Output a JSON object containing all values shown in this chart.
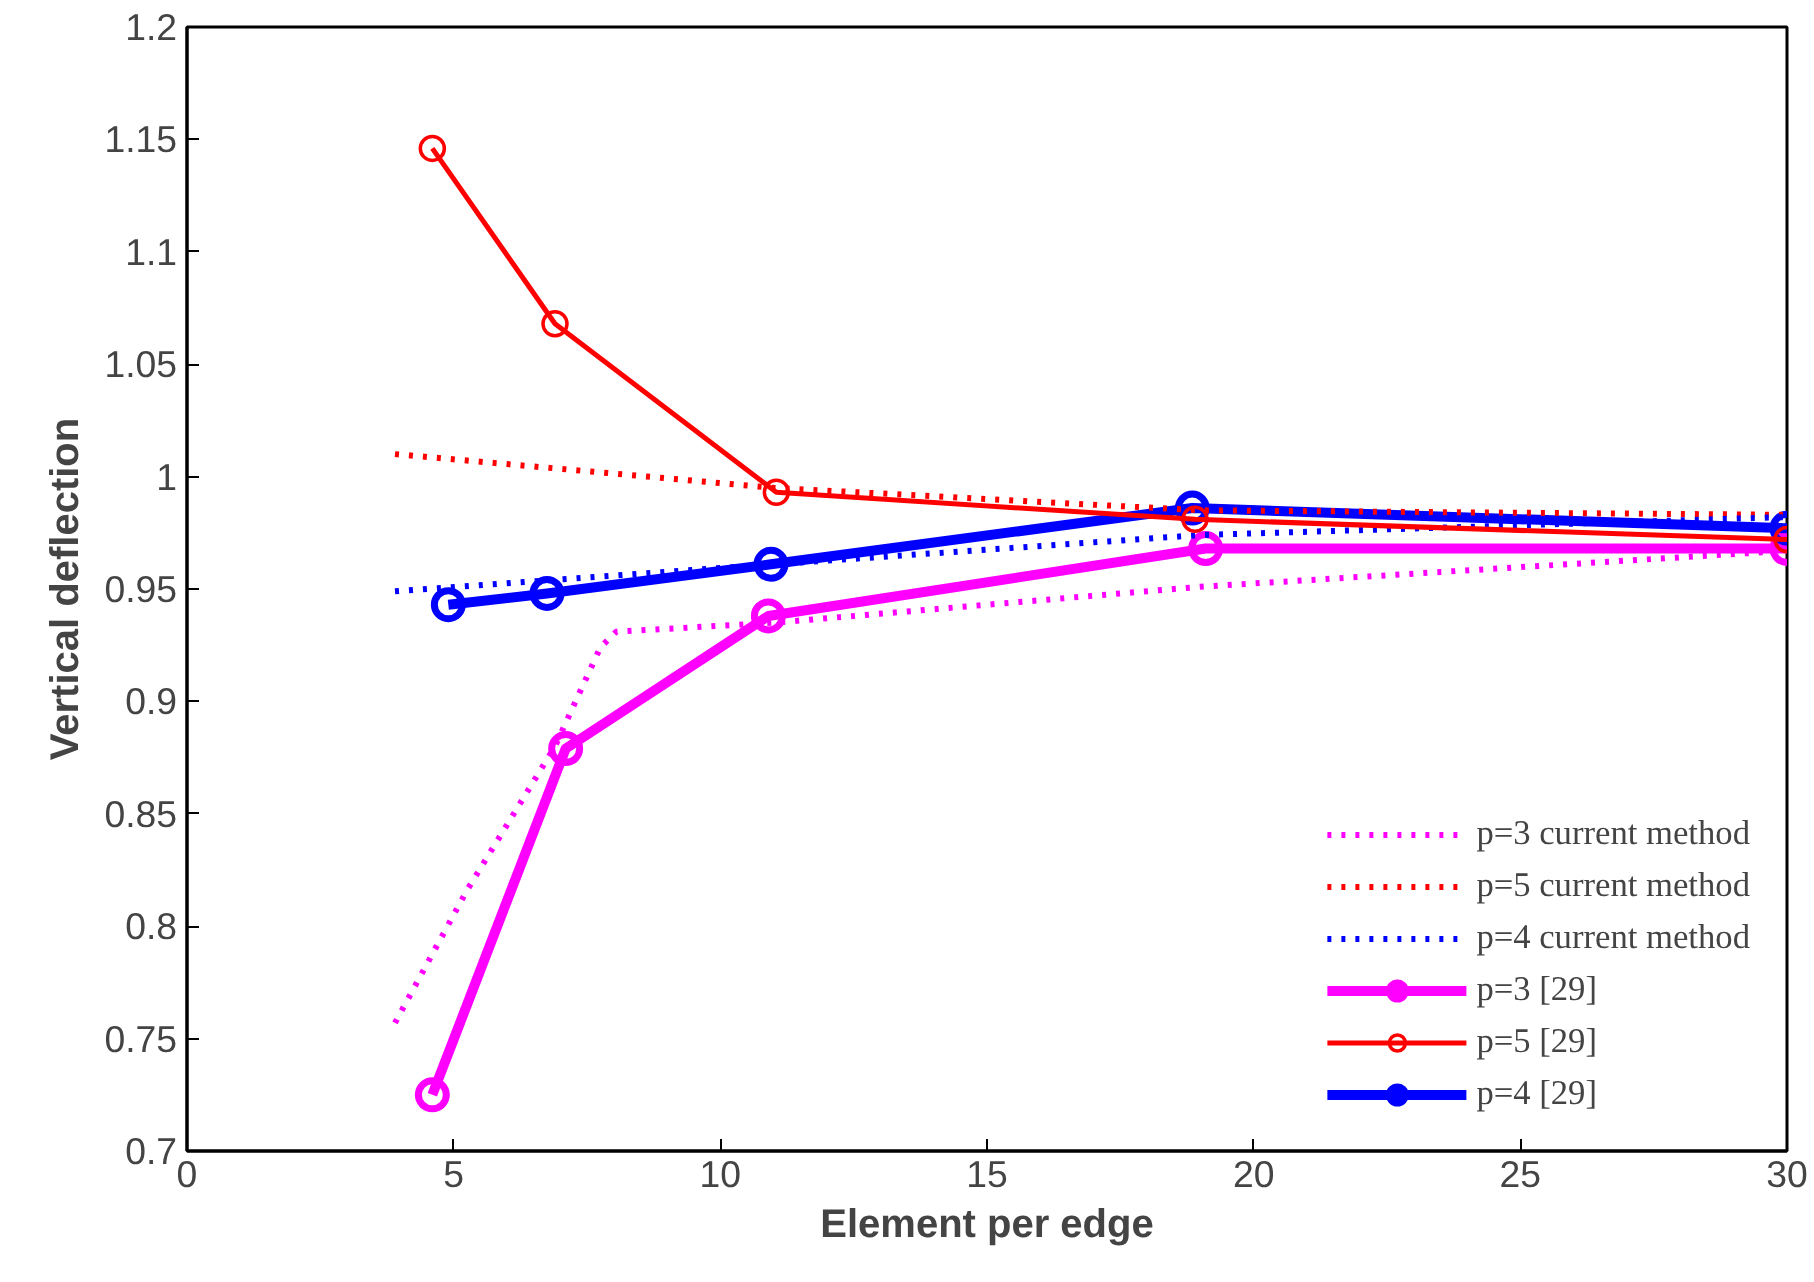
{
  "chart_data": {
    "type": "line",
    "xlabel": "Element per edge",
    "ylabel": "Vertical deflection",
    "xlim": [
      0,
      30
    ],
    "ylim": [
      0.7,
      1.2
    ],
    "xticks": [
      0,
      5,
      10,
      15,
      20,
      25,
      30
    ],
    "yticks": [
      0.7,
      0.75,
      0.8,
      0.85,
      0.9,
      0.95,
      1,
      1.05,
      1.1,
      1.15,
      1.2
    ],
    "grid": false,
    "legend": "bottom right",
    "series": [
      {
        "name": "p=3 current method",
        "color": "#ff00ff",
        "line_style": "dotted",
        "marker": "none",
        "x": [
          3.9,
          5.25,
          6.9,
          7.75,
          8.05,
          11,
          19,
          30
        ],
        "values": [
          0.757,
          0.816,
          0.88,
          0.924,
          0.931,
          0.935,
          0.951,
          0.967
        ]
      },
      {
        "name": "p=5 current method",
        "color": "#ff0000",
        "line_style": "dotted",
        "marker": "none",
        "x": [
          3.9,
          11,
          19,
          30
        ],
        "values": [
          1.01,
          0.995,
          0.985,
          0.983
        ]
      },
      {
        "name": "p=4 current method",
        "color": "#0000ff",
        "line_style": "dotted",
        "marker": "none",
        "x": [
          3.9,
          11,
          19,
          30
        ],
        "values": [
          0.949,
          0.961,
          0.974,
          0.982
        ]
      },
      {
        "name": "p=3 [29]",
        "color": "#ff00ff",
        "line_style": "solid",
        "marker": "circle",
        "x": [
          4.6,
          7.1,
          10.9,
          19.1,
          30
        ],
        "values": [
          0.725,
          0.879,
          0.938,
          0.968,
          0.968
        ]
      },
      {
        "name": "p=5 [29]",
        "color": "#ff0000",
        "line_style": "solid",
        "marker": "circle",
        "x": [
          4.6,
          6.9,
          11.05,
          18.9,
          30
        ],
        "values": [
          1.146,
          1.068,
          0.993,
          0.981,
          0.972
        ]
      },
      {
        "name": "p=4 [29]",
        "color": "#0000ff",
        "line_style": "solid",
        "marker": "circle",
        "x": [
          4.9,
          6.75,
          10.95,
          18.85,
          30
        ],
        "values": [
          0.943,
          0.948,
          0.961,
          0.986,
          0.977
        ]
      }
    ]
  }
}
